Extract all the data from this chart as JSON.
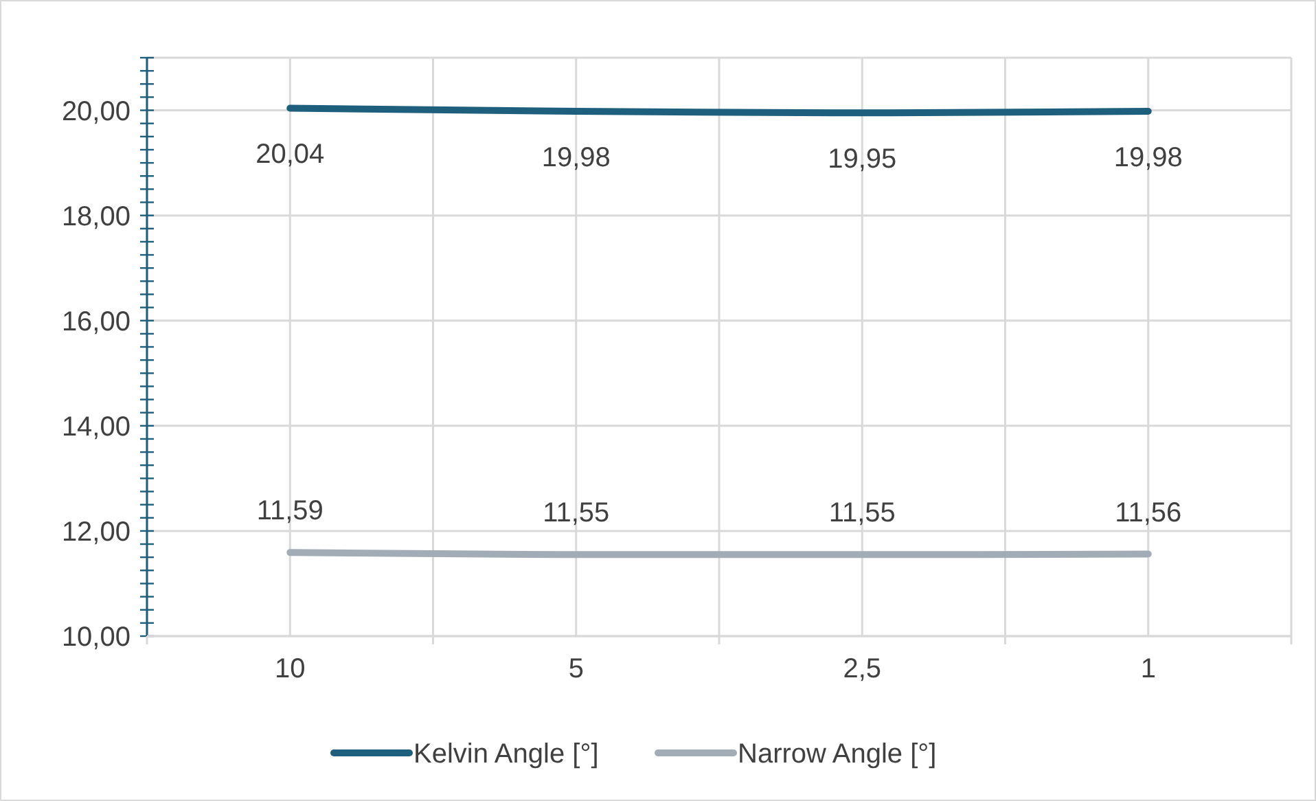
{
  "chart_data": {
    "type": "line",
    "categories": [
      "10",
      "5",
      "2,5",
      "1"
    ],
    "series": [
      {
        "name": "Kelvin Angle [°]",
        "color": "#1d5f7d",
        "values": [
          20.04,
          19.98,
          19.95,
          19.98
        ],
        "value_labels": [
          "20,04",
          "19,98",
          "19,95",
          "19,98"
        ]
      },
      {
        "name": "Narrow Angle [°]",
        "color": "#a2acb6",
        "values": [
          11.59,
          11.55,
          11.55,
          11.56
        ],
        "value_labels": [
          "11,59",
          "11,55",
          "11,55",
          "11,56"
        ]
      }
    ],
    "ylim": [
      10,
      21
    ],
    "yticks": [
      {
        "value": 10,
        "label": "10,00"
      },
      {
        "value": 10.25,
        "label": null
      },
      {
        "value": 10.5,
        "label": null
      },
      {
        "value": 10.75,
        "label": null
      },
      {
        "value": 11,
        "label": null
      },
      {
        "value": 11.25,
        "label": null
      },
      {
        "value": 11.5,
        "label": null
      },
      {
        "value": 11.75,
        "label": null
      },
      {
        "value": 12,
        "label": "12,00"
      },
      {
        "value": 12.25,
        "label": null
      },
      {
        "value": 12.5,
        "label": null
      },
      {
        "value": 12.75,
        "label": null
      },
      {
        "value": 13,
        "label": null
      },
      {
        "value": 13.25,
        "label": null
      },
      {
        "value": 13.5,
        "label": null
      },
      {
        "value": 13.75,
        "label": null
      },
      {
        "value": 14,
        "label": "14,00"
      },
      {
        "value": 14.25,
        "label": null
      },
      {
        "value": 14.5,
        "label": null
      },
      {
        "value": 14.75,
        "label": null
      },
      {
        "value": 15,
        "label": null
      },
      {
        "value": 15.25,
        "label": null
      },
      {
        "value": 15.5,
        "label": null
      },
      {
        "value": 15.75,
        "label": null
      },
      {
        "value": 16,
        "label": "16,00"
      },
      {
        "value": 16.25,
        "label": null
      },
      {
        "value": 16.5,
        "label": null
      },
      {
        "value": 16.75,
        "label": null
      },
      {
        "value": 17,
        "label": null
      },
      {
        "value": 17.25,
        "label": null
      },
      {
        "value": 17.5,
        "label": null
      },
      {
        "value": 17.75,
        "label": null
      },
      {
        "value": 18,
        "label": "18,00"
      },
      {
        "value": 18.25,
        "label": null
      },
      {
        "value": 18.5,
        "label": null
      },
      {
        "value": 18.75,
        "label": null
      },
      {
        "value": 19,
        "label": null
      },
      {
        "value": 19.25,
        "label": null
      },
      {
        "value": 19.5,
        "label": null
      },
      {
        "value": 19.75,
        "label": null
      },
      {
        "value": 20,
        "label": "20,00"
      },
      {
        "value": 20.25,
        "label": null
      },
      {
        "value": 20.5,
        "label": null
      },
      {
        "value": 20.75,
        "label": null
      },
      {
        "value": 21,
        "label": null
      }
    ],
    "grid": true,
    "legend": "bottom",
    "marker": "none",
    "line_style": "solid"
  }
}
